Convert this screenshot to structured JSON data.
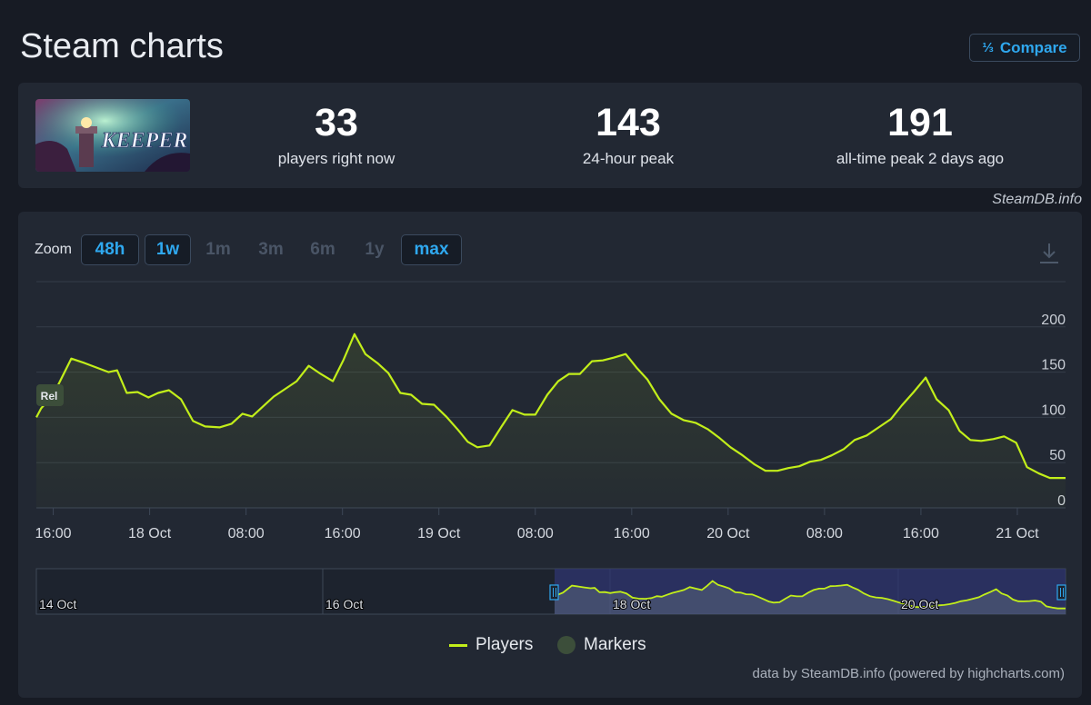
{
  "header": {
    "title": "Steam charts",
    "compare_label": "Compare",
    "compare_icon": "fraction-icon"
  },
  "stats": [
    {
      "value": "33",
      "label": "players right now"
    },
    {
      "value": "143",
      "label": "24-hour peak"
    },
    {
      "value": "191",
      "label": "all-time peak 2 days ago"
    }
  ],
  "game": {
    "logo_text": "KEEPER"
  },
  "source": "SteamDB.info",
  "zoom": {
    "label": "Zoom",
    "options": [
      {
        "label": "48h",
        "active": true
      },
      {
        "label": "1w",
        "active": true
      },
      {
        "label": "1m",
        "active": false
      },
      {
        "label": "3m",
        "active": false
      },
      {
        "label": "6m",
        "active": false
      },
      {
        "label": "1y",
        "active": false
      },
      {
        "label": "max",
        "active": true
      }
    ]
  },
  "chart_data": {
    "type": "line",
    "line_color": "#c2ee1a",
    "y_ticks": [
      "0",
      "50",
      "100",
      "150",
      "200"
    ],
    "ylim": [
      0,
      250
    ],
    "grid": true,
    "x_tick_labels": [
      "16:00",
      "18 Oct",
      "08:00",
      "16:00",
      "19 Oct",
      "08:00",
      "16:00",
      "20 Oct",
      "08:00",
      "16:00",
      "21 Oct"
    ],
    "x_tick_hours": [
      16,
      24,
      32,
      40,
      48,
      56,
      64,
      72,
      80,
      88,
      96
    ],
    "x_range_hours": [
      14.6,
      100
    ],
    "marker_label": "Rel",
    "series": [
      {
        "name": "Players",
        "x_hours": [
          14.6,
          15,
          16,
          17.5,
          18.6,
          19.6,
          20.6,
          21.3,
          22.1,
          23,
          23.9,
          24.7,
          25.6,
          26.6,
          27.6,
          28.6,
          29.8,
          30.8,
          31.7,
          32.5,
          33.4,
          34.3,
          35.2,
          36.2,
          37.2,
          38.2,
          39.2,
          40.1,
          41,
          41.9,
          42.9,
          43.8,
          44.8,
          45.7,
          46.6,
          47.6,
          48.6,
          49.6,
          50.4,
          51.2,
          52.2,
          53.2,
          54.1,
          55.1,
          56,
          57,
          57.9,
          58.8,
          59.7,
          60.7,
          61.6,
          62.5,
          63.5,
          64.4,
          65.3,
          66.3,
          67.3,
          68.3,
          69.3,
          70.3,
          71.3,
          72.2,
          73.2,
          74.2,
          75.1,
          76.1,
          77,
          77.9,
          78.8,
          79.7,
          80.6,
          81.6,
          82.5,
          83.5,
          84.5,
          85.5,
          86.4,
          87.4,
          88.4,
          89.3,
          90.3,
          91.2,
          92.1,
          93,
          94,
          94.9,
          95.9,
          96.8,
          97.8,
          98.7,
          99.3,
          100
        ],
        "y_values": [
          100,
          110,
          125,
          165,
          160,
          155,
          150,
          152,
          127,
          128,
          122,
          127,
          130,
          120,
          96,
          90,
          89,
          93,
          104,
          101,
          112,
          123,
          131,
          140,
          157,
          148,
          140,
          164,
          192,
          170,
          160,
          149,
          127,
          125,
          115,
          114,
          101,
          86,
          73,
          67,
          69,
          90,
          108,
          103,
          103,
          125,
          140,
          148,
          148,
          162,
          163,
          166,
          170,
          155,
          142,
          120,
          104,
          97,
          94,
          87,
          77,
          67,
          58,
          48,
          41,
          41,
          44,
          46,
          51,
          53,
          58,
          65,
          75,
          80,
          89,
          98,
          113,
          128,
          144,
          120,
          108,
          85,
          75,
          74,
          76,
          79,
          72,
          45,
          38,
          33,
          33,
          33
        ]
      }
    ],
    "navigator": {
      "labels": [
        "14 Oct",
        "16 Oct",
        "18 Oct",
        "20 Oct"
      ]
    },
    "legend": [
      {
        "name": "Players"
      },
      {
        "name": "Markers"
      }
    ],
    "credits": "data by SteamDB.info (powered by highcharts.com)"
  }
}
